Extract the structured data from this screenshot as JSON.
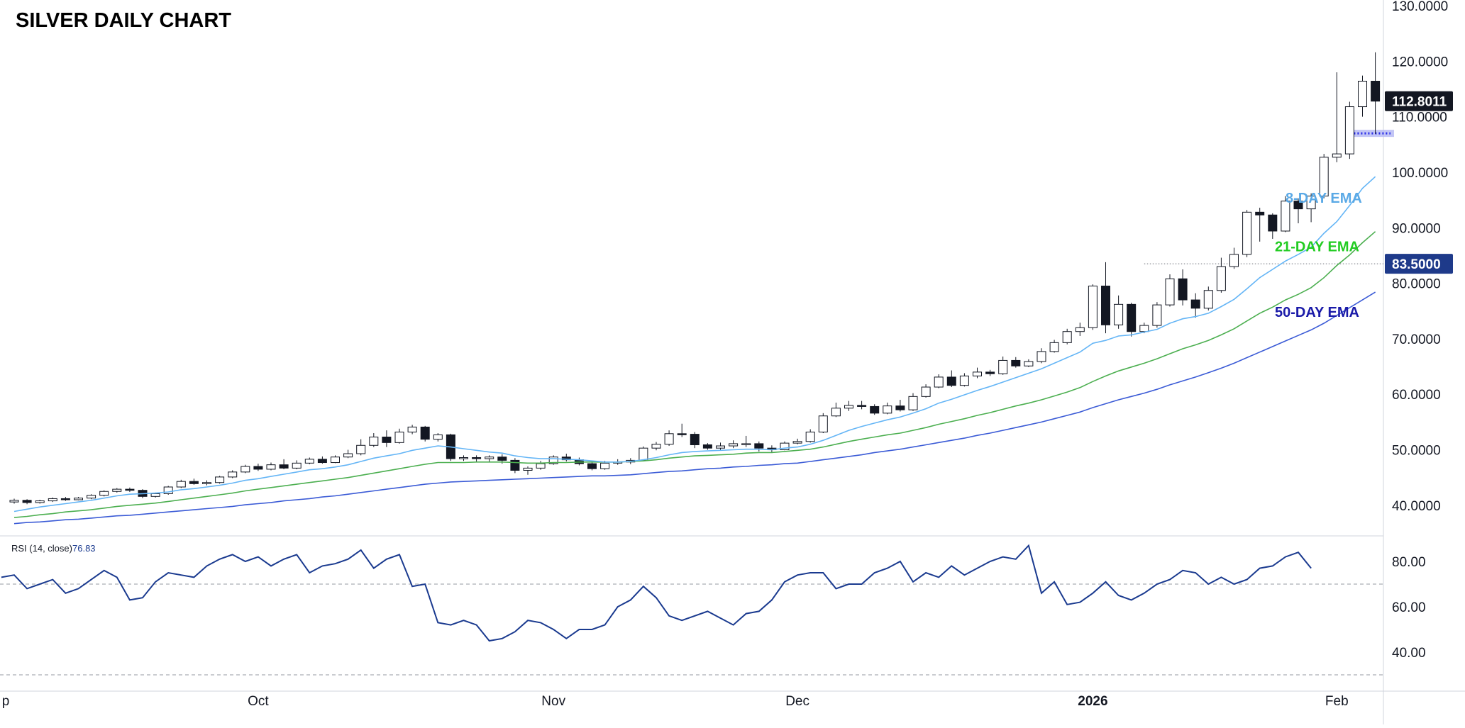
{
  "title": "SILVER DAILY CHART",
  "colors": {
    "candle_up_fill": "#ffffff",
    "candle_down_fill": "#131722",
    "candle_border": "#131722",
    "ema8": "#64b5f6",
    "ema21": "#4caf50",
    "ema50": "#3b5bd6",
    "rsi_line": "#1a3a8f",
    "support_band": "#b3b6f2",
    "support_line": "#2a2ee8",
    "grid_dashed": "#9598a1",
    "price_badge": "#131722",
    "level_badge": "#1e3a8a",
    "label_8": "#5aa9e6",
    "label_21": "#22cc22",
    "label_50": "#1a1aa8"
  },
  "chart_data": [
    {
      "type": "candlestick",
      "price_scale": {
        "min": 35,
        "max": 130,
        "ticks": [
          40,
          50,
          60,
          70,
          80,
          90,
          100,
          110,
          120,
          130
        ],
        "tick_labels": [
          "40.0000",
          "50.0000",
          "60.0000",
          "70.0000",
          "80.0000",
          "90.0000",
          "100.0000",
          "110.0000",
          "120.0000",
          "130.0000"
        ]
      },
      "x_labels": [
        {
          "label": "p",
          "index": -1
        },
        {
          "label": "Oct",
          "index": 19
        },
        {
          "label": "Nov",
          "index": 42
        },
        {
          "label": "Dec",
          "index": 61
        },
        {
          "label": "2026",
          "index": 84
        },
        {
          "label": "Feb",
          "index": 103
        }
      ],
      "candles": [
        [
          40.6,
          40.9,
          41.2,
          40.3
        ],
        [
          40.9,
          40.5,
          41.1,
          40.2
        ],
        [
          40.5,
          40.8,
          41.0,
          40.3
        ],
        [
          40.8,
          41.2,
          41.4,
          40.6
        ],
        [
          41.2,
          41.0,
          41.5,
          40.8
        ],
        [
          41.0,
          41.3,
          41.5,
          40.9
        ],
        [
          41.3,
          41.8,
          42.0,
          41.1
        ],
        [
          41.8,
          42.5,
          42.7,
          41.6
        ],
        [
          42.5,
          42.9,
          43.1,
          42.3
        ],
        [
          42.9,
          42.7,
          43.2,
          42.4
        ],
        [
          42.7,
          41.6,
          42.9,
          41.3
        ],
        [
          41.6,
          42.1,
          42.3,
          41.4
        ],
        [
          42.1,
          43.3,
          43.5,
          41.9
        ],
        [
          43.3,
          44.3,
          44.6,
          43.1
        ],
        [
          44.3,
          43.9,
          44.8,
          43.7
        ],
        [
          43.9,
          44.1,
          44.5,
          43.6
        ],
        [
          44.1,
          45.1,
          45.3,
          43.9
        ],
        [
          45.1,
          46.0,
          46.3,
          44.9
        ],
        [
          46.0,
          47.0,
          47.3,
          45.8
        ],
        [
          47.0,
          46.5,
          47.5,
          46.2
        ],
        [
          46.5,
          47.3,
          47.7,
          46.3
        ],
        [
          47.3,
          46.7,
          48.3,
          46.5
        ],
        [
          46.7,
          47.6,
          48.1,
          46.5
        ],
        [
          47.6,
          48.3,
          48.6,
          47.4
        ],
        [
          48.3,
          47.7,
          48.8,
          47.5
        ],
        [
          47.7,
          48.7,
          49.0,
          47.6
        ],
        [
          48.7,
          49.3,
          50.0,
          48.5
        ],
        [
          49.3,
          50.8,
          51.9,
          49.0
        ],
        [
          50.8,
          52.3,
          53.0,
          50.5
        ],
        [
          52.3,
          51.3,
          53.5,
          50.5
        ],
        [
          51.3,
          53.2,
          53.8,
          51.1
        ],
        [
          53.2,
          54.1,
          54.5,
          52.8
        ],
        [
          54.1,
          51.9,
          54.3,
          51.5
        ],
        [
          51.9,
          52.7,
          53.0,
          51.5
        ],
        [
          52.7,
          48.4,
          52.9,
          48.0
        ],
        [
          48.4,
          48.6,
          49.0,
          48.0
        ],
        [
          48.6,
          48.4,
          49.0,
          47.9
        ],
        [
          48.4,
          48.7,
          49.0,
          47.8
        ],
        [
          48.7,
          48.1,
          49.2,
          47.5
        ],
        [
          48.1,
          46.3,
          48.5,
          45.8
        ],
        [
          46.3,
          46.7,
          47.0,
          45.5
        ],
        [
          46.7,
          47.5,
          48.0,
          46.4
        ],
        [
          47.5,
          48.7,
          49.0,
          47.3
        ],
        [
          48.7,
          48.2,
          49.3,
          47.9
        ],
        [
          48.2,
          47.5,
          48.6,
          47.2
        ],
        [
          47.5,
          46.6,
          48.0,
          46.3
        ],
        [
          46.6,
          47.6,
          48.0,
          46.4
        ],
        [
          47.6,
          47.8,
          48.3,
          47.3
        ],
        [
          47.8,
          48.1,
          48.5,
          47.4
        ],
        [
          48.1,
          50.3,
          50.6,
          47.9
        ],
        [
          50.3,
          51.0,
          51.4,
          49.9
        ],
        [
          51.0,
          52.9,
          53.5,
          50.7
        ],
        [
          52.9,
          52.8,
          54.7,
          52.3
        ],
        [
          52.8,
          50.9,
          53.2,
          50.3
        ],
        [
          50.9,
          50.3,
          51.2,
          50.0
        ],
        [
          50.3,
          50.7,
          51.3,
          49.9
        ],
        [
          50.7,
          51.1,
          51.7,
          50.3
        ],
        [
          51.1,
          51.1,
          52.5,
          50.5
        ],
        [
          51.1,
          50.3,
          51.5,
          49.7
        ],
        [
          50.3,
          50.0,
          50.8,
          49.5
        ],
        [
          50.0,
          51.2,
          51.5,
          49.9
        ],
        [
          51.2,
          51.5,
          52.0,
          51.0
        ],
        [
          51.5,
          53.2,
          53.7,
          51.3
        ],
        [
          53.2,
          56.1,
          56.6,
          53.0
        ],
        [
          56.1,
          57.5,
          58.5,
          55.9
        ],
        [
          57.5,
          58.0,
          58.8,
          57.0
        ],
        [
          58.0,
          57.8,
          58.8,
          57.3
        ],
        [
          57.8,
          56.6,
          58.2,
          56.3
        ],
        [
          56.6,
          57.9,
          58.5,
          56.4
        ],
        [
          57.9,
          57.2,
          59.0,
          56.9
        ],
        [
          57.2,
          59.6,
          60.2,
          57.0
        ],
        [
          59.6,
          61.3,
          61.8,
          59.4
        ],
        [
          61.3,
          63.1,
          63.6,
          61.1
        ],
        [
          63.1,
          61.6,
          64.3,
          61.3
        ],
        [
          61.6,
          63.3,
          63.8,
          61.4
        ],
        [
          63.3,
          64.0,
          64.8,
          62.9
        ],
        [
          64.0,
          63.7,
          64.4,
          63.3
        ],
        [
          63.7,
          66.1,
          66.8,
          63.5
        ],
        [
          66.1,
          65.1,
          66.7,
          64.8
        ],
        [
          65.1,
          65.9,
          66.3,
          64.9
        ],
        [
          65.9,
          67.7,
          68.3,
          65.6
        ],
        [
          67.7,
          69.3,
          69.8,
          67.5
        ],
        [
          69.3,
          71.3,
          71.8,
          69.0
        ],
        [
          71.3,
          72.0,
          72.9,
          70.5
        ],
        [
          72.0,
          79.5,
          79.8,
          71.6
        ],
        [
          79.5,
          72.5,
          83.8,
          71.0
        ],
        [
          72.5,
          76.2,
          77.8,
          71.8
        ],
        [
          76.2,
          71.3,
          76.5,
          70.4
        ],
        [
          71.3,
          72.4,
          72.9,
          71.0
        ],
        [
          72.4,
          76.1,
          76.6,
          72.0
        ],
        [
          76.1,
          80.8,
          81.6,
          75.8
        ],
        [
          80.8,
          77.0,
          82.5,
          76.0
        ],
        [
          77.0,
          75.5,
          78.2,
          73.8
        ],
        [
          75.5,
          78.7,
          79.4,
          75.1
        ],
        [
          78.7,
          83.0,
          84.6,
          78.3
        ],
        [
          83.0,
          85.2,
          86.4,
          82.6
        ],
        [
          85.2,
          92.8,
          93.2,
          84.7
        ],
        [
          92.8,
          92.3,
          93.6,
          87.5
        ],
        [
          92.3,
          89.4,
          92.6,
          88.0
        ],
        [
          89.4,
          94.8,
          95.7,
          89.2
        ],
        [
          94.8,
          93.4,
          95.3,
          90.8
        ],
        [
          93.4,
          95.7,
          96.2,
          91.0
        ],
        [
          95.7,
          102.7,
          103.3,
          95.3
        ],
        [
          102.7,
          103.3,
          118.0,
          101.8
        ],
        [
          103.3,
          111.8,
          112.7,
          102.4
        ],
        [
          111.8,
          116.4,
          117.4,
          110.0
        ],
        [
          116.4,
          112.8,
          121.6,
          106.9
        ]
      ],
      "ema8": [
        38.9,
        39.3,
        39.7,
        40.0,
        40.3,
        40.6,
        40.9,
        41.3,
        41.7,
        42.0,
        42.1,
        42.2,
        42.4,
        42.8,
        43.0,
        43.3,
        43.6,
        44.0,
        44.5,
        44.8,
        45.2,
        45.6,
        46.0,
        46.4,
        46.6,
        46.9,
        47.3,
        47.9,
        48.5,
        48.9,
        49.3,
        49.9,
        50.3,
        50.7,
        50.5,
        50.2,
        49.9,
        49.6,
        49.4,
        48.9,
        48.6,
        48.4,
        48.4,
        48.3,
        48.2,
        48.0,
        47.8,
        47.8,
        47.9,
        48.2,
        48.6,
        49.1,
        49.5,
        49.7,
        49.8,
        49.9,
        50.0,
        50.1,
        50.1,
        50.0,
        50.3,
        50.5,
        51.0,
        51.7,
        52.6,
        53.5,
        54.2,
        54.8,
        55.4,
        55.9,
        56.6,
        57.4,
        58.4,
        59.1,
        59.9,
        60.7,
        61.4,
        62.2,
        63.0,
        63.8,
        64.6,
        65.6,
        66.6,
        67.6,
        69.2,
        69.7,
        70.5,
        70.7,
        71.2,
        71.7,
        72.8,
        73.6,
        74.0,
        74.6,
        75.8,
        77.1,
        79.0,
        81.0,
        82.5,
        84.0,
        85.2,
        86.5,
        89.0,
        91.1,
        94.0,
        97.1,
        99.2
      ],
      "ema21": [
        37.8,
        38.0,
        38.3,
        38.5,
        38.8,
        39.0,
        39.2,
        39.5,
        39.8,
        40.0,
        40.2,
        40.4,
        40.7,
        41.0,
        41.3,
        41.6,
        41.9,
        42.2,
        42.6,
        42.9,
        43.2,
        43.5,
        43.8,
        44.1,
        44.4,
        44.7,
        45.0,
        45.4,
        45.8,
        46.2,
        46.6,
        47.0,
        47.4,
        47.7,
        47.7,
        47.7,
        47.8,
        47.8,
        47.8,
        47.7,
        47.6,
        47.6,
        47.7,
        47.7,
        47.8,
        47.8,
        47.8,
        47.8,
        47.9,
        48.0,
        48.2,
        48.5,
        48.7,
        48.9,
        49.0,
        49.1,
        49.2,
        49.4,
        49.5,
        49.5,
        49.7,
        49.9,
        50.1,
        50.5,
        51.0,
        51.5,
        51.9,
        52.3,
        52.7,
        53.0,
        53.5,
        54.0,
        54.6,
        55.1,
        55.6,
        56.2,
        56.7,
        57.3,
        57.9,
        58.4,
        59.0,
        59.7,
        60.4,
        61.2,
        62.3,
        63.3,
        64.2,
        64.9,
        65.6,
        66.4,
        67.3,
        68.2,
        68.9,
        69.7,
        70.7,
        71.8,
        73.2,
        74.6,
        75.7,
        77.0,
        78.0,
        79.2,
        81.0,
        83.2,
        85.1,
        87.3,
        89.3
      ],
      "ema50": [
        36.7,
        36.9,
        37.0,
        37.2,
        37.4,
        37.5,
        37.7,
        37.9,
        38.1,
        38.2,
        38.4,
        38.6,
        38.8,
        39.0,
        39.2,
        39.4,
        39.6,
        39.8,
        40.1,
        40.3,
        40.5,
        40.8,
        41.0,
        41.2,
        41.5,
        41.7,
        42.0,
        42.3,
        42.6,
        42.9,
        43.2,
        43.5,
        43.8,
        44.0,
        44.2,
        44.3,
        44.4,
        44.5,
        44.6,
        44.7,
        44.8,
        44.9,
        45.0,
        45.1,
        45.2,
        45.3,
        45.3,
        45.4,
        45.5,
        45.7,
        45.9,
        46.1,
        46.2,
        46.4,
        46.6,
        46.7,
        46.9,
        47.0,
        47.2,
        47.3,
        47.5,
        47.6,
        47.9,
        48.2,
        48.5,
        48.8,
        49.1,
        49.5,
        49.8,
        50.1,
        50.5,
        50.9,
        51.3,
        51.7,
        52.1,
        52.6,
        53.0,
        53.5,
        54.0,
        54.5,
        55.0,
        55.6,
        56.2,
        56.8,
        57.6,
        58.3,
        59.0,
        59.6,
        60.2,
        60.9,
        61.7,
        62.4,
        63.1,
        63.9,
        64.7,
        65.6,
        66.6,
        67.6,
        68.6,
        69.6,
        70.6,
        71.6,
        72.8,
        74.2,
        75.6,
        77.0,
        78.4
      ],
      "annotations": [
        {
          "text": "8-DAY EMA",
          "series": "ema8"
        },
        {
          "text": "21-DAY EMA",
          "series": "ema21"
        },
        {
          "text": "50-DAY EMA",
          "series": "ema50"
        }
      ],
      "support_level": 107,
      "level_line": 83.5,
      "badges": [
        {
          "text": "112.8011",
          "value": 112.8011,
          "style": "current"
        },
        {
          "text": "83.5000",
          "value": 83.5,
          "style": "level"
        }
      ]
    },
    {
      "type": "line",
      "label": "RSI (14, close)",
      "value_label": "76.83",
      "y_scale": {
        "min": 25,
        "max": 90,
        "ticks": [
          40,
          60,
          80
        ],
        "tick_labels": [
          "40.00",
          "60.00",
          "80.00"
        ]
      },
      "levels": [
        70,
        30
      ],
      "values": [
        73,
        74,
        68,
        70,
        72,
        66,
        68,
        72,
        76,
        73,
        63,
        64,
        71,
        75,
        74,
        73,
        78,
        81,
        83,
        80,
        82,
        78,
        81,
        83,
        75,
        78,
        79,
        81,
        85,
        77,
        81,
        83,
        69,
        70,
        53,
        52,
        54,
        52,
        45,
        46,
        49,
        54,
        53,
        50,
        46,
        50,
        50,
        52,
        60,
        63,
        69,
        64,
        56,
        54,
        56,
        58,
        55,
        52,
        57,
        58,
        63,
        71,
        74,
        75,
        75,
        68,
        70,
        70,
        75,
        77,
        80,
        71,
        75,
        73,
        78,
        74,
        77,
        80,
        82,
        81,
        87,
        66,
        71,
        61,
        62,
        66,
        71,
        65,
        63,
        66,
        70,
        72,
        76,
        75,
        70,
        73,
        70,
        72,
        77,
        78,
        82,
        84,
        77
      ]
    }
  ]
}
